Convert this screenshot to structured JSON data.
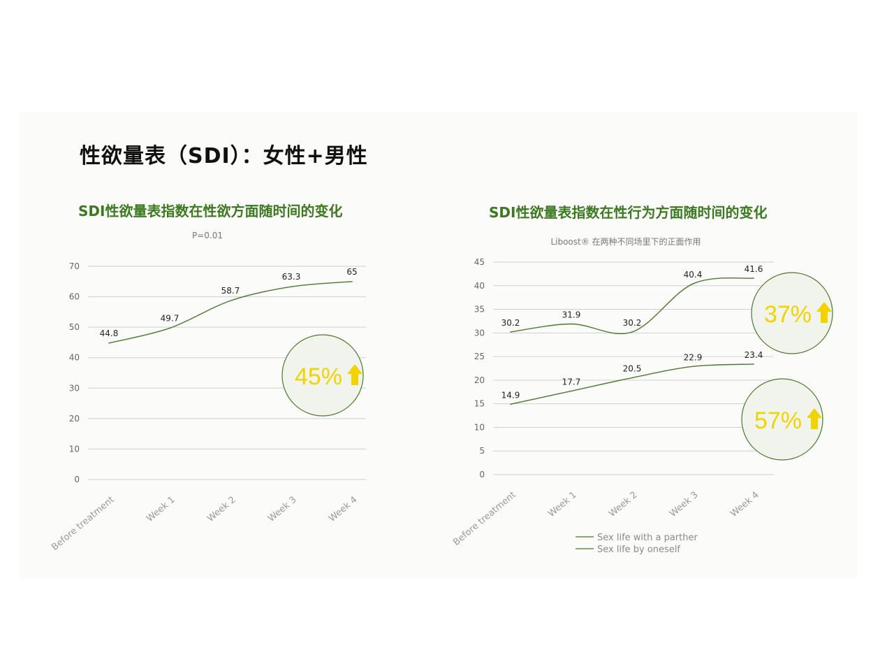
{
  "page": {
    "title": "性欲量表（SDI）：女性+男性"
  },
  "chart_data": [
    {
      "type": "line",
      "title": "SDI性欲量表指数在性欲方面随时间的变化",
      "subtitle": "P=0.01",
      "categories": [
        "Before treatment",
        "Week 1",
        "Week 2",
        "Week 3",
        "Week 4"
      ],
      "series": [
        {
          "values": [
            44.8,
            49.7,
            58.7,
            63.3,
            65
          ]
        }
      ],
      "ylim": [
        0,
        70
      ],
      "yticks": [
        0,
        10,
        20,
        30,
        40,
        50,
        60,
        70
      ],
      "grid": true,
      "line_color": "#4a7a2a",
      "callouts": [
        {
          "text": "45%",
          "color": "#f2d300"
        }
      ]
    },
    {
      "type": "line",
      "title": "SDI性欲量表指数在性行为方面随时间的变化",
      "subtitle": "Liboost® 在两种不同场里下的正面作用",
      "categories": [
        "Before treatment",
        "Week 1",
        "Week 2",
        "Week 3",
        "Week 4"
      ],
      "series": [
        {
          "name": "Sex life with a parther",
          "values": [
            30.2,
            31.9,
            30.2,
            40.4,
            41.6
          ]
        },
        {
          "name": "Sex life by oneself",
          "values": [
            14.9,
            17.7,
            20.5,
            22.9,
            23.4
          ]
        }
      ],
      "ylim": [
        0,
        45
      ],
      "yticks": [
        0,
        5,
        10,
        15,
        20,
        25,
        30,
        35,
        40,
        45
      ],
      "grid": true,
      "legend": "bottom",
      "line_color": "#4a7a2a",
      "callouts": [
        {
          "text": "37%",
          "color": "#f2d300"
        },
        {
          "text": "57%",
          "color": "#f2d300"
        }
      ]
    }
  ]
}
